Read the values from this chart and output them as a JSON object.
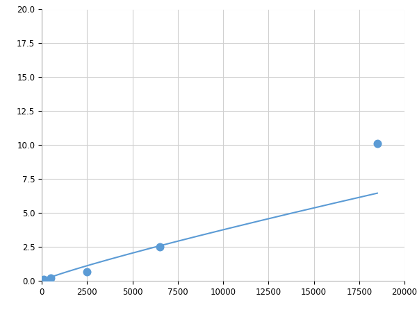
{
  "x": [
    100,
    500,
    2500,
    6500,
    18500
  ],
  "y": [
    0.1,
    0.2,
    0.65,
    2.5,
    10.1
  ],
  "line_color": "#5b9bd5",
  "marker_color": "#5b9bd5",
  "marker_size": 5,
  "line_width": 1.5,
  "xlim": [
    0,
    20000
  ],
  "ylim": [
    0,
    20.0
  ],
  "xticks": [
    0,
    2500,
    5000,
    7500,
    10000,
    12500,
    15000,
    17500,
    20000
  ],
  "yticks": [
    0.0,
    2.5,
    5.0,
    7.5,
    10.0,
    12.5,
    15.0,
    17.5,
    20.0
  ],
  "grid_color": "#d0d0d0",
  "background_color": "#ffffff",
  "figure_bg_color": "#ffffff",
  "figsize": [
    6.0,
    4.5
  ],
  "dpi": 100
}
